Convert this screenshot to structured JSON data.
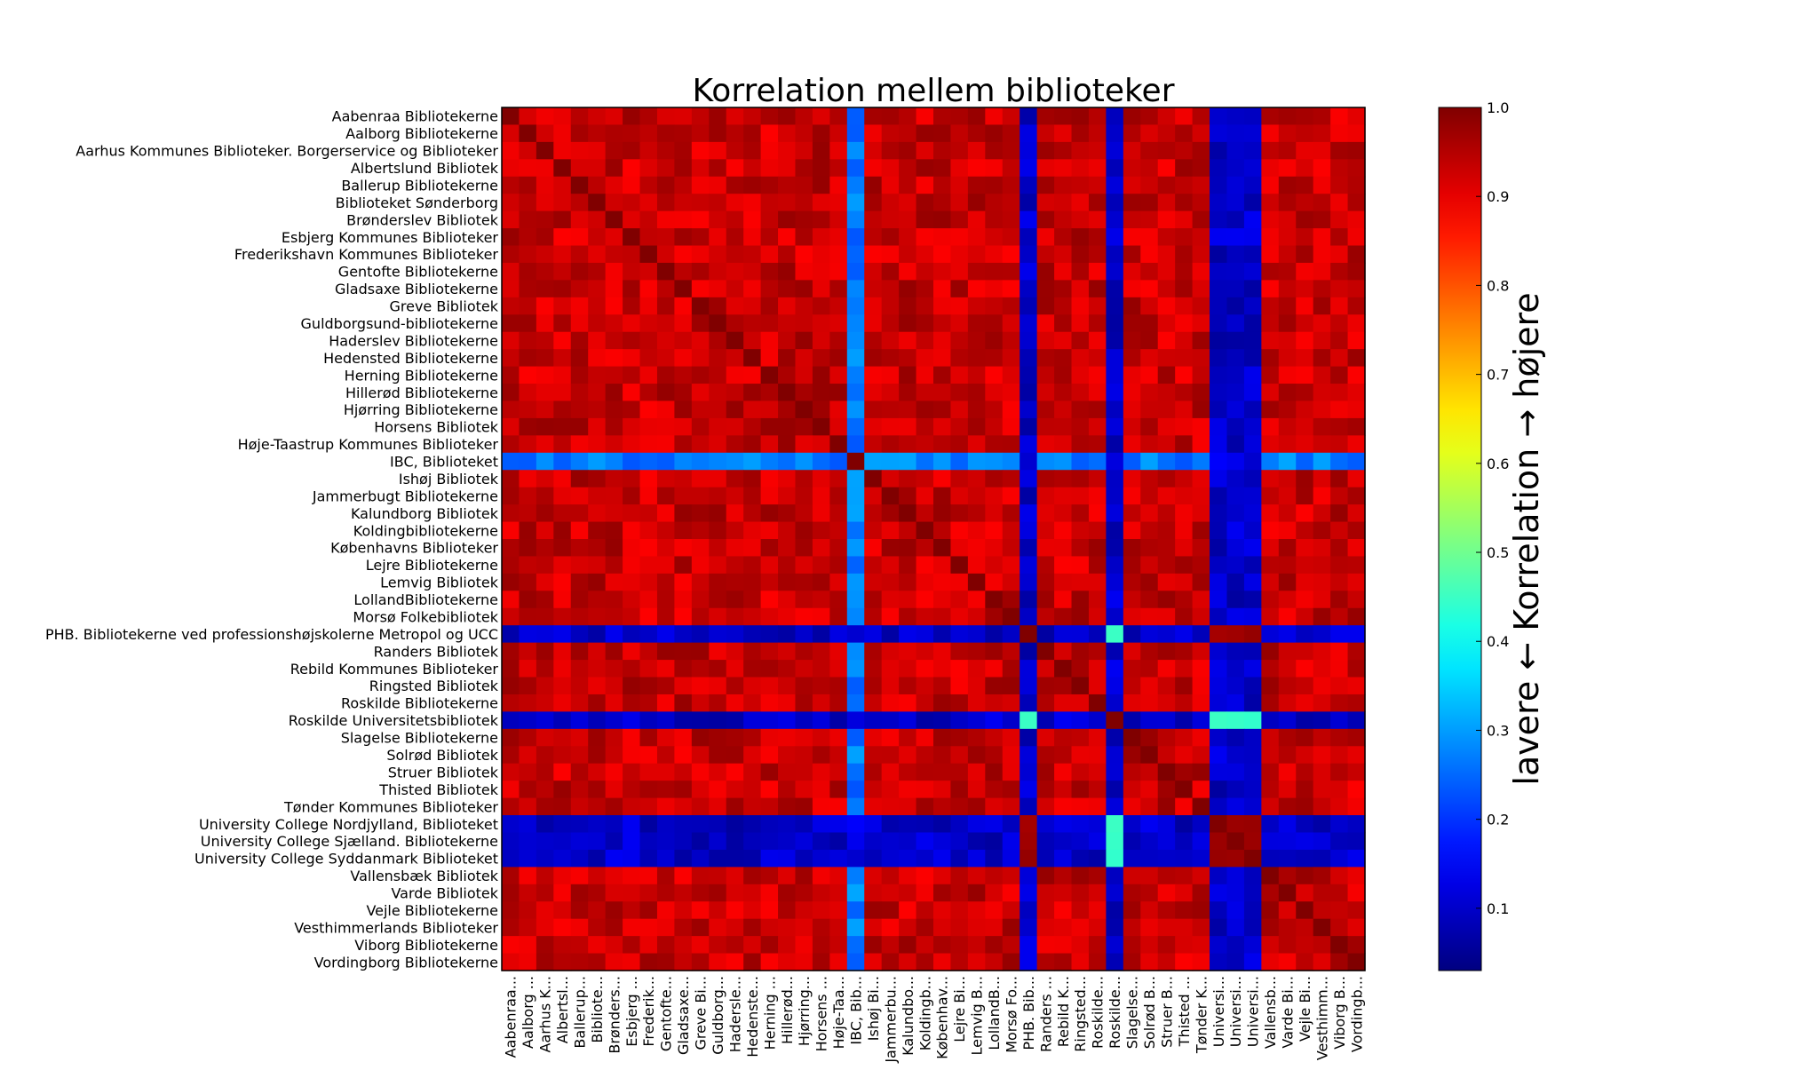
{
  "chart_data": {
    "type": "heatmap",
    "title": "Korrelation mellem biblioteker",
    "row_labels": [
      "Aabenraa Bibliotekerne",
      "Aalborg Bibliotekerne",
      "Aarhus Kommunes Biblioteker. Borgerservice og Biblioteker",
      "Albertslund Bibliotek",
      "Ballerup Bibliotekerne",
      "Biblioteket Sønderborg",
      "Brønderslev Bibliotek",
      "Esbjerg Kommunes Biblioteker",
      "Frederikshavn Kommunes Biblioteker",
      "Gentofte Bibliotekerne",
      "Gladsaxe Bibliotekerne",
      "Greve Bibliotek",
      "Guldborgsund-bibliotekerne",
      "Haderslev Bibliotekerne",
      "Hedensted Bibliotekerne",
      "Herning Bibliotekerne",
      "Hillerød Bibliotekerne",
      "Hjørring Bibliotekerne",
      "Horsens Bibliotek",
      "Høje-Taastrup Kommunes Biblioteker",
      "IBC, Biblioteket",
      "Ishøj Bibliotek",
      "Jammerbugt Bibliotekerne",
      "Kalundborg Bibliotek",
      "Koldingbibliotekerne",
      "Københavns Biblioteker",
      "Lejre Bibliotekerne",
      "Lemvig Bibliotek",
      "LollandBibliotekerne",
      "Morsø Folkebibliotek",
      "PHB. Bibliotekerne ved professionshøjskolerne Metropol og UCC",
      "Randers Bibliotek",
      "Rebild Kommunes Biblioteker",
      "Ringsted Bibliotek",
      "Roskilde Bibliotekerne",
      "Roskilde Universitetsbibliotek",
      "Slagelse Bibliotekerne",
      "Solrød Bibliotek",
      "Struer Bibliotek",
      "Thisted Bibliotek",
      "Tønder Kommunes Biblioteker",
      "University College Nordjylland, Biblioteket",
      "University College Sjælland. Bibliotekerne",
      "University College Syddanmark Biblioteket",
      "Vallensbæk Bibliotek",
      "Varde Bibliotek",
      "Vejle Bibliotekerne",
      "Vesthimmerlands Biblioteker",
      "Viborg Bibliotekerne",
      "Vordingborg Bibliotekerne"
    ],
    "col_labels": [
      "Aabenraa...",
      "Aalborg ...",
      "Aarhus K...",
      "Albertsl...",
      "Ballerup...",
      "Bibliote...",
      "Brønders...",
      "Esbjerg ...",
      "Frederik...",
      "Gentofte...",
      "Gladsaxe...",
      "Greve Bi...",
      "Guldborg...",
      "Haderslе...",
      "Hedenste...",
      "Herning ...",
      "Hillerød...",
      "Hjørring...",
      "Horsens ...",
      "Høje-Taa...",
      "IBC, Bib...",
      "Ishøj Bi...",
      "Jammerbu...",
      "Kalundbo...",
      "Koldingb...",
      "Københav...",
      "Lejre Bi...",
      "Lemvig B...",
      "LollandB...",
      "Morsø Fo...",
      "PHB. Bib...",
      "Randers ...",
      "Rebild K...",
      "Ringsted...",
      "Roskilde...",
      "Roskilde...",
      "Slagelse...",
      "Solrød B...",
      "Struer B...",
      "Thisted ...",
      "Tønder K...",
      "Universi...",
      "Universi...",
      "Universi...",
      "Vallensb...",
      "Varde Bi...",
      "Vejle Bi...",
      "Vesthimm...",
      "Viborg B...",
      "Vordingb..."
    ],
    "value_range": [
      0.03,
      1.0
    ],
    "colormap": "jet",
    "base_correlation": 0.93,
    "outlier_rows": [
      {
        "row": "IBC, Biblioteket",
        "index": 20,
        "typical_value": 0.27
      },
      {
        "row": "PHB. Bibliotekerne ved professionshøjskolerne Metropol og UCC",
        "index": 30,
        "typical_value": 0.1
      },
      {
        "row": "Roskilde Universitetsbibliotek",
        "index": 35,
        "typical_value": 0.1
      },
      {
        "row": "University College Nordjylland, Biblioteket",
        "index": 41,
        "typical_value": 0.1
      },
      {
        "row": "University College Sjælland. Bibliotekerne",
        "index": 42,
        "typical_value": 0.1
      },
      {
        "row": "University College Syddanmark Biblioteket",
        "index": 43,
        "typical_value": 0.1
      }
    ],
    "notable_pairs": [
      {
        "a": 30,
        "b": 35,
        "value": 0.45
      },
      {
        "a": 35,
        "b": 41,
        "value": 0.45
      },
      {
        "a": 35,
        "b": 42,
        "value": 0.45
      },
      {
        "a": 35,
        "b": 43,
        "value": 0.45
      },
      {
        "a": 30,
        "b": 41,
        "value": 0.97
      },
      {
        "a": 30,
        "b": 42,
        "value": 0.97
      },
      {
        "a": 30,
        "b": 43,
        "value": 0.97
      },
      {
        "a": 41,
        "b": 42,
        "value": 0.98
      },
      {
        "a": 41,
        "b": 43,
        "value": 0.98
      },
      {
        "a": 42,
        "b": 43,
        "value": 0.98
      }
    ],
    "colorbar": {
      "label": "lavere ← Korrelation → højere",
      "ticks": [
        "0.1",
        "0.2",
        "0.3",
        "0.4",
        "0.5",
        "0.6",
        "0.7",
        "0.8",
        "0.9",
        "1.0"
      ]
    },
    "grid": false,
    "legend": "colorbar-right"
  }
}
